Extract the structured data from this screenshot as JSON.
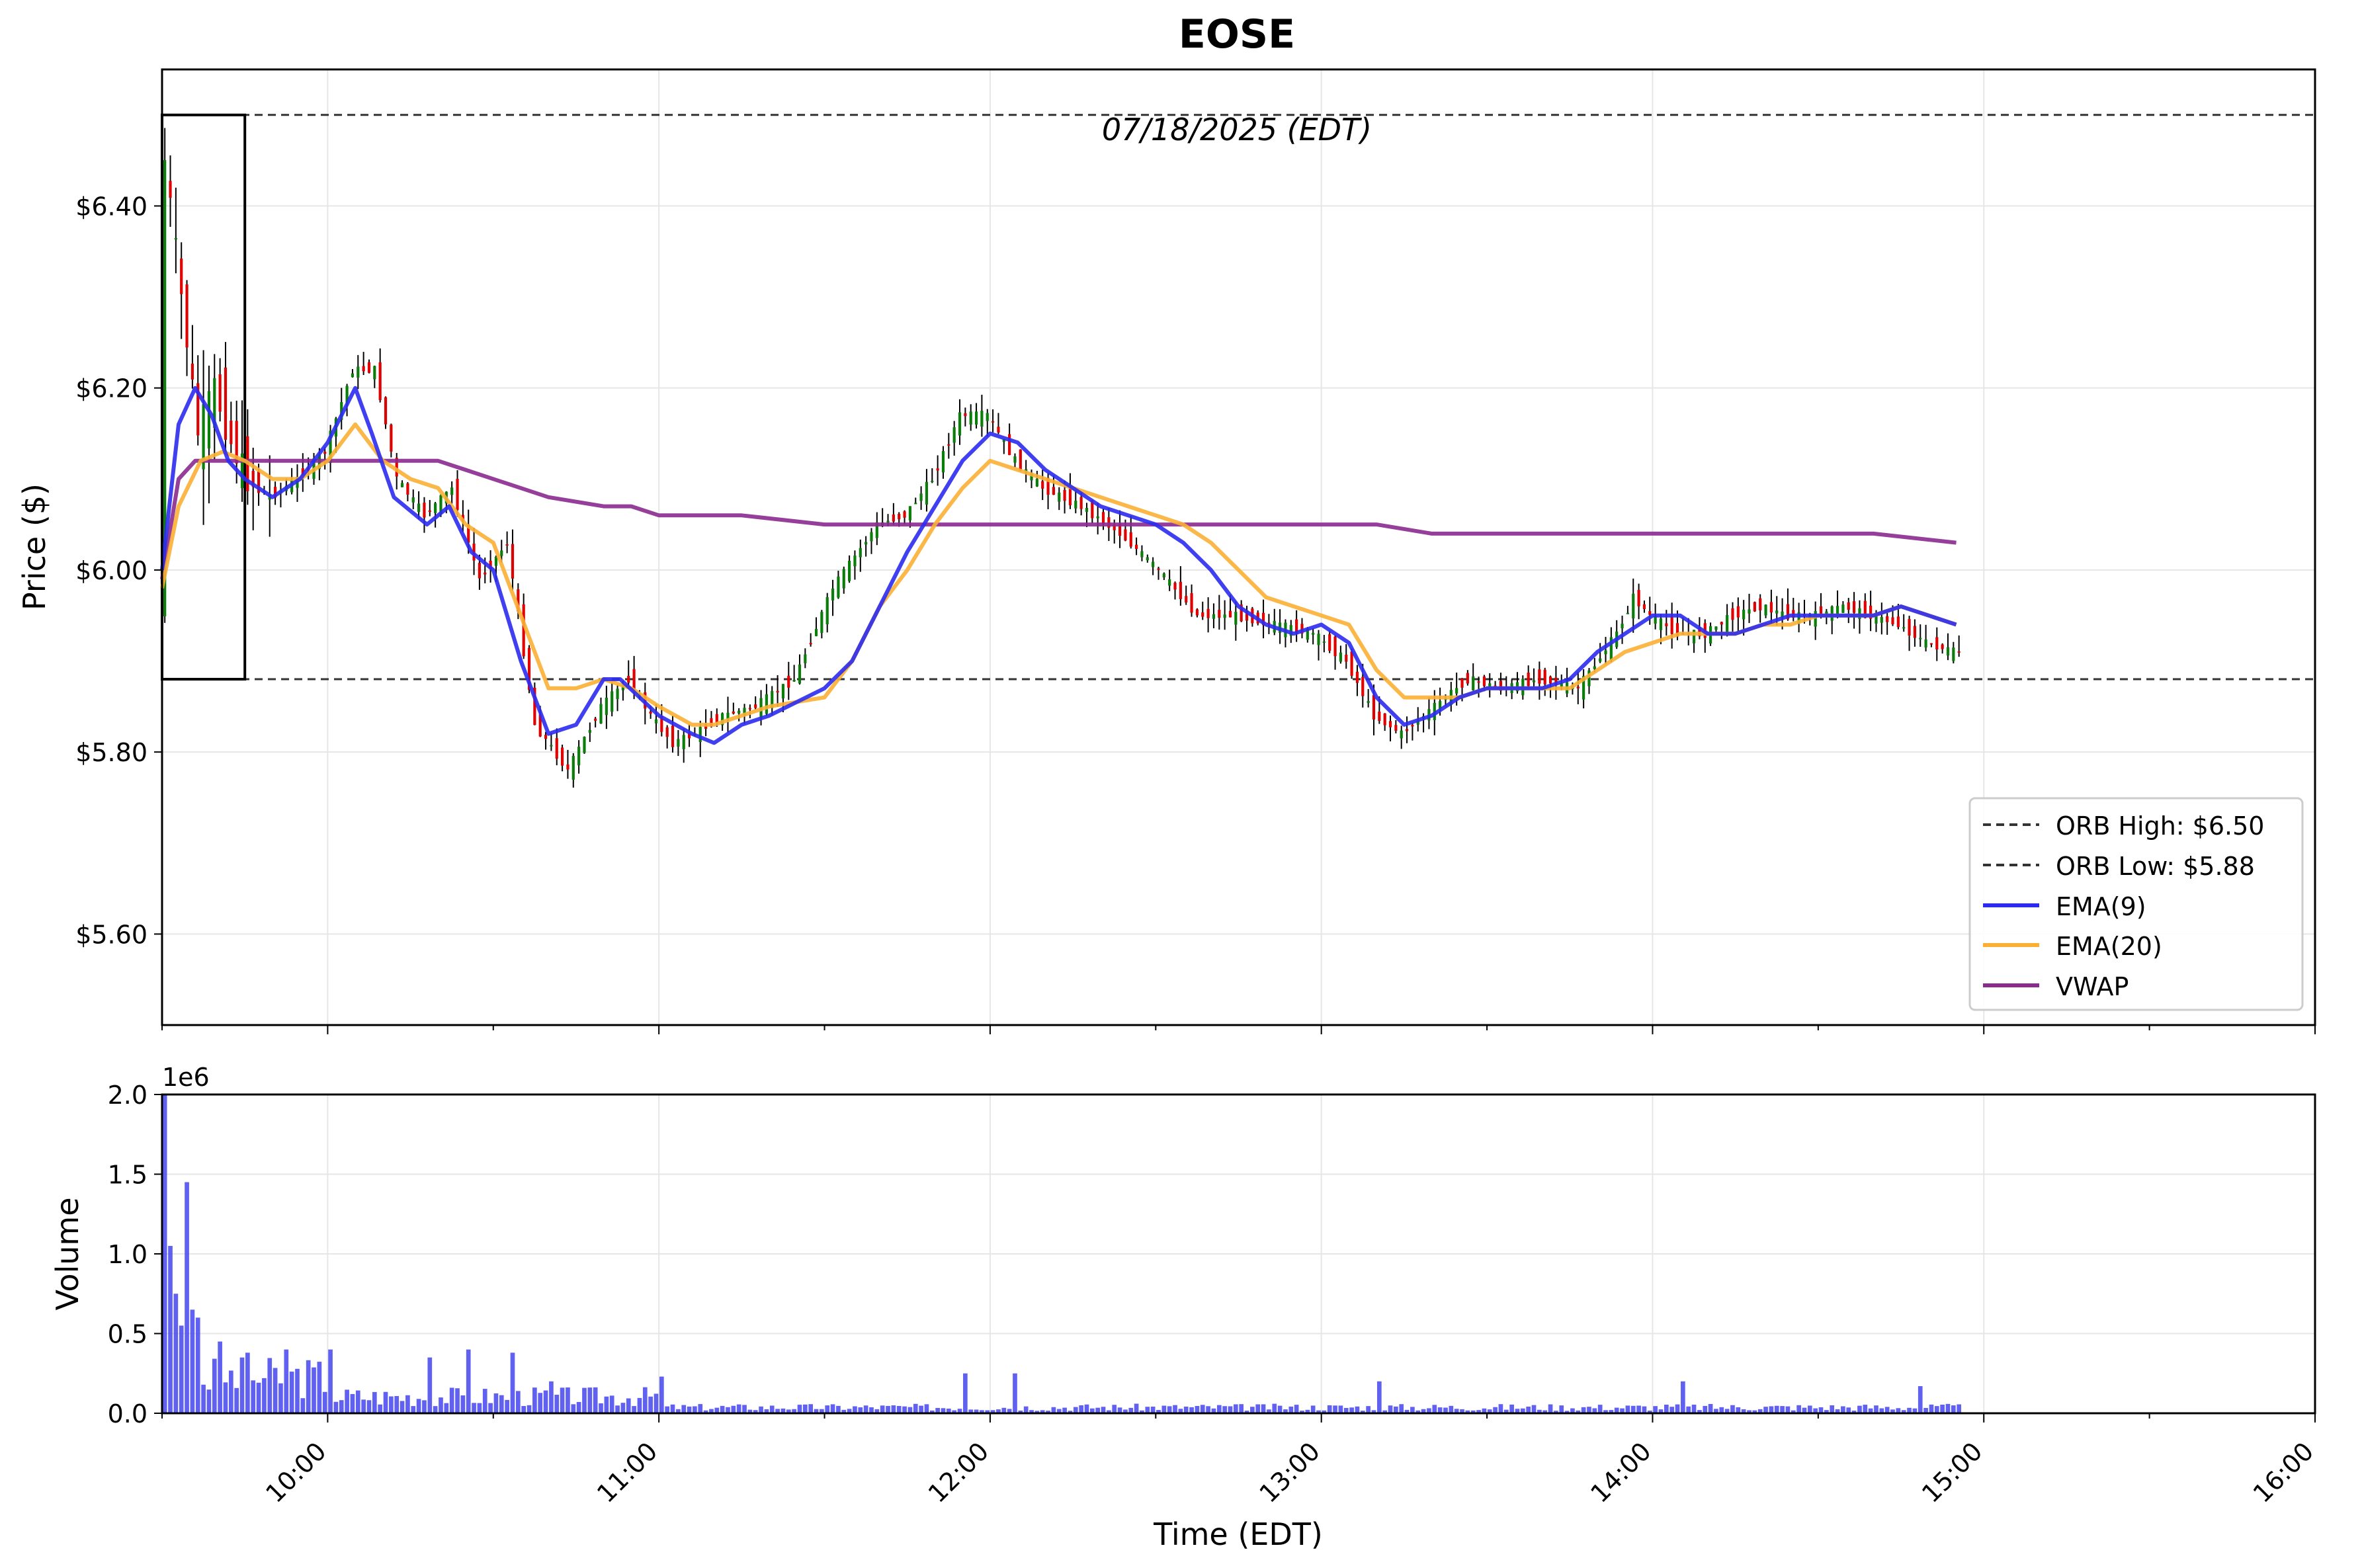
{
  "chart_data": [
    {
      "type": "candlestick",
      "title": "EOSE",
      "subtitle": "07/18/2025 (EDT)",
      "ylabel": "Price ($)",
      "ylim": [
        5.5,
        6.55
      ],
      "xlim": [
        "09:30",
        "16:00"
      ],
      "y_ticks": [
        {
          "value": 5.6,
          "label": "$5.60"
        },
        {
          "value": 5.8,
          "label": "$5.80"
        },
        {
          "value": 6.0,
          "label": "$6.00"
        },
        {
          "value": 6.2,
          "label": "$6.20"
        },
        {
          "value": 6.4,
          "label": "$6.40"
        }
      ],
      "grid": true,
      "legend_position": "lower-right",
      "legend": [
        {
          "label": "ORB High: $6.50",
          "style": "dashed",
          "color": "#333333"
        },
        {
          "label": "ORB Low: $5.88",
          "style": "dashed",
          "color": "#333333"
        },
        {
          "label": "EMA(9)",
          "style": "solid",
          "color": "#2b2bf0"
        },
        {
          "label": "EMA(20)",
          "style": "solid",
          "color": "#fbb034"
        },
        {
          "label": "VWAP",
          "style": "solid",
          "color": "#8b2a8f"
        }
      ],
      "orb": {
        "high": 6.5,
        "low": 5.88,
        "start": "09:30",
        "end": "09:45"
      },
      "colors": {
        "up": "#0a7d0a",
        "down": "#e00000",
        "wick": "#000000",
        "ema9": "#2b2bf0",
        "ema20": "#fbb034",
        "vwap": "#8b2a8f"
      },
      "candle_anchors": {
        "x": [
          "09:30",
          "09:31",
          "09:33",
          "09:35",
          "09:37",
          "09:40",
          "09:43",
          "09:46",
          "09:50",
          "09:55",
          "10:00",
          "10:05",
          "10:09",
          "10:13",
          "10:18",
          "10:23",
          "10:28",
          "10:33",
          "10:38",
          "10:44",
          "10:50",
          "10:55",
          "10:59",
          "11:03",
          "11:07",
          "11:12",
          "11:18",
          "11:25",
          "11:32",
          "11:40",
          "11:45",
          "11:50",
          "11:55",
          "12:00",
          "12:05",
          "12:10",
          "12:17",
          "12:24",
          "12:31",
          "12:38",
          "12:45",
          "12:52",
          "12:59",
          "13:05",
          "13:10",
          "13:15",
          "13:21",
          "13:27",
          "13:33",
          "13:40",
          "13:47",
          "13:54",
          "13:57",
          "14:00",
          "14:05",
          "14:10",
          "14:15",
          "14:20",
          "14:25",
          "14:30",
          "14:35",
          "14:40",
          "14:45",
          "14:50",
          "14:55"
        ],
        "price": [
          5.95,
          6.45,
          6.35,
          6.25,
          6.15,
          6.2,
          6.14,
          6.1,
          6.08,
          6.1,
          6.13,
          6.22,
          6.22,
          6.1,
          6.06,
          6.09,
          5.99,
          6.03,
          5.83,
          5.78,
          5.85,
          5.88,
          5.84,
          5.81,
          5.82,
          5.84,
          5.85,
          5.88,
          5.98,
          6.05,
          6.06,
          6.1,
          6.17,
          6.17,
          6.12,
          6.09,
          6.07,
          6.04,
          6.0,
          5.95,
          5.95,
          5.94,
          5.93,
          5.9,
          5.84,
          5.82,
          5.85,
          5.88,
          5.87,
          5.88,
          5.87,
          5.93,
          5.97,
          5.95,
          5.93,
          5.93,
          5.95,
          5.96,
          5.95,
          5.95,
          5.96,
          5.95,
          5.94,
          5.92,
          5.91
        ]
      },
      "ema9": {
        "x": [
          "09:30",
          "09:33",
          "09:36",
          "09:39",
          "09:42",
          "09:45",
          "09:50",
          "09:55",
          "10:00",
          "10:05",
          "10:08",
          "10:12",
          "10:18",
          "10:22",
          "10:26",
          "10:30",
          "10:35",
          "10:40",
          "10:45",
          "10:50",
          "10:53",
          "11:00",
          "11:06",
          "11:10",
          "11:15",
          "11:20",
          "11:30",
          "11:35",
          "11:40",
          "11:45",
          "11:50",
          "11:55",
          "12:00",
          "12:05",
          "12:10",
          "12:15",
          "12:20",
          "12:25",
          "12:30",
          "12:35",
          "12:40",
          "12:45",
          "12:50",
          "12:55",
          "13:00",
          "13:05",
          "13:10",
          "13:15",
          "13:20",
          "13:25",
          "13:30",
          "13:35",
          "13:40",
          "13:45",
          "13:50",
          "13:55",
          "14:00",
          "14:05",
          "14:10",
          "14:15",
          "14:20",
          "14:25",
          "14:30",
          "14:35",
          "14:40",
          "14:45",
          "14:50",
          "14:55"
        ],
        "y": [
          6.0,
          6.16,
          6.2,
          6.17,
          6.12,
          6.1,
          6.08,
          6.1,
          6.14,
          6.2,
          6.15,
          6.08,
          6.05,
          6.07,
          6.02,
          6.0,
          5.9,
          5.82,
          5.83,
          5.88,
          5.88,
          5.84,
          5.82,
          5.81,
          5.83,
          5.84,
          5.87,
          5.9,
          5.96,
          6.02,
          6.07,
          6.12,
          6.15,
          6.14,
          6.11,
          6.09,
          6.07,
          6.06,
          6.05,
          6.03,
          6.0,
          5.96,
          5.94,
          5.93,
          5.94,
          5.92,
          5.86,
          5.83,
          5.84,
          5.86,
          5.87,
          5.87,
          5.87,
          5.88,
          5.91,
          5.93,
          5.95,
          5.95,
          5.93,
          5.93,
          5.94,
          5.95,
          5.95,
          5.95,
          5.95,
          5.96,
          5.95,
          5.94
        ]
      },
      "ema20": {
        "x": [
          "09:30",
          "09:33",
          "09:37",
          "09:41",
          "09:45",
          "09:50",
          "09:55",
          "10:00",
          "10:05",
          "10:10",
          "10:15",
          "10:20",
          "10:25",
          "10:30",
          "10:35",
          "10:40",
          "10:45",
          "10:50",
          "10:55",
          "11:00",
          "11:06",
          "11:10",
          "11:15",
          "11:20",
          "11:30",
          "11:35",
          "11:40",
          "11:45",
          "11:50",
          "11:55",
          "12:00",
          "12:05",
          "12:10",
          "12:15",
          "12:20",
          "12:25",
          "12:30",
          "12:35",
          "12:40",
          "12:45",
          "12:50",
          "12:55",
          "13:00",
          "13:05",
          "13:10",
          "13:15",
          "13:20",
          "13:25",
          "13:30",
          "13:35",
          "13:40",
          "13:45",
          "13:50",
          "13:55",
          "14:00",
          "14:05",
          "14:10",
          "14:15",
          "14:20",
          "14:25",
          "14:30",
          "14:35",
          "14:40",
          "14:45",
          "14:50",
          "14:55"
        ],
        "y": [
          5.98,
          6.07,
          6.12,
          6.13,
          6.12,
          6.1,
          6.1,
          6.12,
          6.16,
          6.12,
          6.1,
          6.09,
          6.05,
          6.03,
          5.95,
          5.87,
          5.87,
          5.88,
          5.87,
          5.85,
          5.83,
          5.83,
          5.84,
          5.85,
          5.86,
          5.9,
          5.96,
          6.0,
          6.05,
          6.09,
          6.12,
          6.11,
          6.1,
          6.09,
          6.08,
          6.07,
          6.06,
          6.05,
          6.03,
          6.0,
          5.97,
          5.96,
          5.95,
          5.94,
          5.89,
          5.86,
          5.86,
          5.86,
          5.87,
          5.87,
          5.87,
          5.87,
          5.89,
          5.91,
          5.92,
          5.93,
          5.93,
          5.93,
          5.94,
          5.94,
          5.95,
          5.95,
          5.95,
          5.96,
          5.95,
          5.94
        ]
      },
      "vwap": {
        "x": [
          "09:30",
          "09:33",
          "09:36",
          "09:40",
          "09:45",
          "09:50",
          "09:55",
          "10:00",
          "10:05",
          "10:10",
          "10:15",
          "10:20",
          "10:25",
          "10:30",
          "10:40",
          "10:50",
          "10:55",
          "11:00",
          "11:15",
          "11:30",
          "11:45",
          "12:00",
          "12:10",
          "12:20",
          "12:30",
          "12:45",
          "13:00",
          "13:10",
          "13:20",
          "13:30",
          "14:00",
          "14:20",
          "14:40",
          "14:55"
        ],
        "y": [
          5.99,
          6.1,
          6.12,
          6.12,
          6.12,
          6.12,
          6.12,
          6.12,
          6.12,
          6.12,
          6.12,
          6.12,
          6.11,
          6.1,
          6.08,
          6.07,
          6.07,
          6.06,
          6.06,
          6.05,
          6.05,
          6.05,
          6.05,
          6.05,
          6.05,
          6.05,
          6.05,
          6.05,
          6.04,
          6.04,
          6.04,
          6.04,
          6.04,
          6.03
        ]
      }
    },
    {
      "type": "bar",
      "ylabel": "Volume",
      "xlabel": "Time (EDT)",
      "y_scale_label": "1e6",
      "ylim": [
        0,
        2.0
      ],
      "xlim": [
        "09:30",
        "16:00"
      ],
      "y_ticks": [
        {
          "value": 0.0,
          "label": "0.0"
        },
        {
          "value": 0.5,
          "label": "0.5"
        },
        {
          "value": 1.0,
          "label": "1.0"
        },
        {
          "value": 1.5,
          "label": "1.5"
        },
        {
          "value": 2.0,
          "label": "2.0"
        }
      ],
      "x_ticks": [
        {
          "time": "10:00",
          "label": "10:00"
        },
        {
          "time": "11:00",
          "label": "11:00"
        },
        {
          "time": "12:00",
          "label": "12:00"
        },
        {
          "time": "13:00",
          "label": "13:00"
        },
        {
          "time": "14:00",
          "label": "14:00"
        },
        {
          "time": "15:00",
          "label": "15:00"
        },
        {
          "time": "16:00",
          "label": "16:00"
        }
      ],
      "grid": true,
      "color": "#4444ee",
      "bars": [
        {
          "time": "09:30",
          "value": 2.0
        },
        {
          "time": "09:31",
          "value": 1.05
        },
        {
          "time": "09:32",
          "value": 0.75
        },
        {
          "time": "09:33",
          "value": 0.55
        },
        {
          "time": "09:34",
          "value": 1.45
        },
        {
          "time": "09:35",
          "value": 0.65
        },
        {
          "time": "09:36",
          "value": 0.6
        },
        {
          "time": "09:40",
          "value": 0.45
        },
        {
          "time": "09:45",
          "value": 0.38
        },
        {
          "time": "09:52",
          "value": 0.4
        },
        {
          "time": "10:00",
          "value": 0.4
        },
        {
          "time": "10:18",
          "value": 0.35
        },
        {
          "time": "10:25",
          "value": 0.4
        },
        {
          "time": "10:33",
          "value": 0.38
        },
        {
          "time": "10:40",
          "value": 0.2
        },
        {
          "time": "11:00",
          "value": 0.23
        },
        {
          "time": "11:55",
          "value": 0.25
        },
        {
          "time": "12:04",
          "value": 0.25
        },
        {
          "time": "13:10",
          "value": 0.2
        },
        {
          "time": "14:05",
          "value": 0.2
        },
        {
          "time": "14:48",
          "value": 0.17
        }
      ]
    }
  ]
}
